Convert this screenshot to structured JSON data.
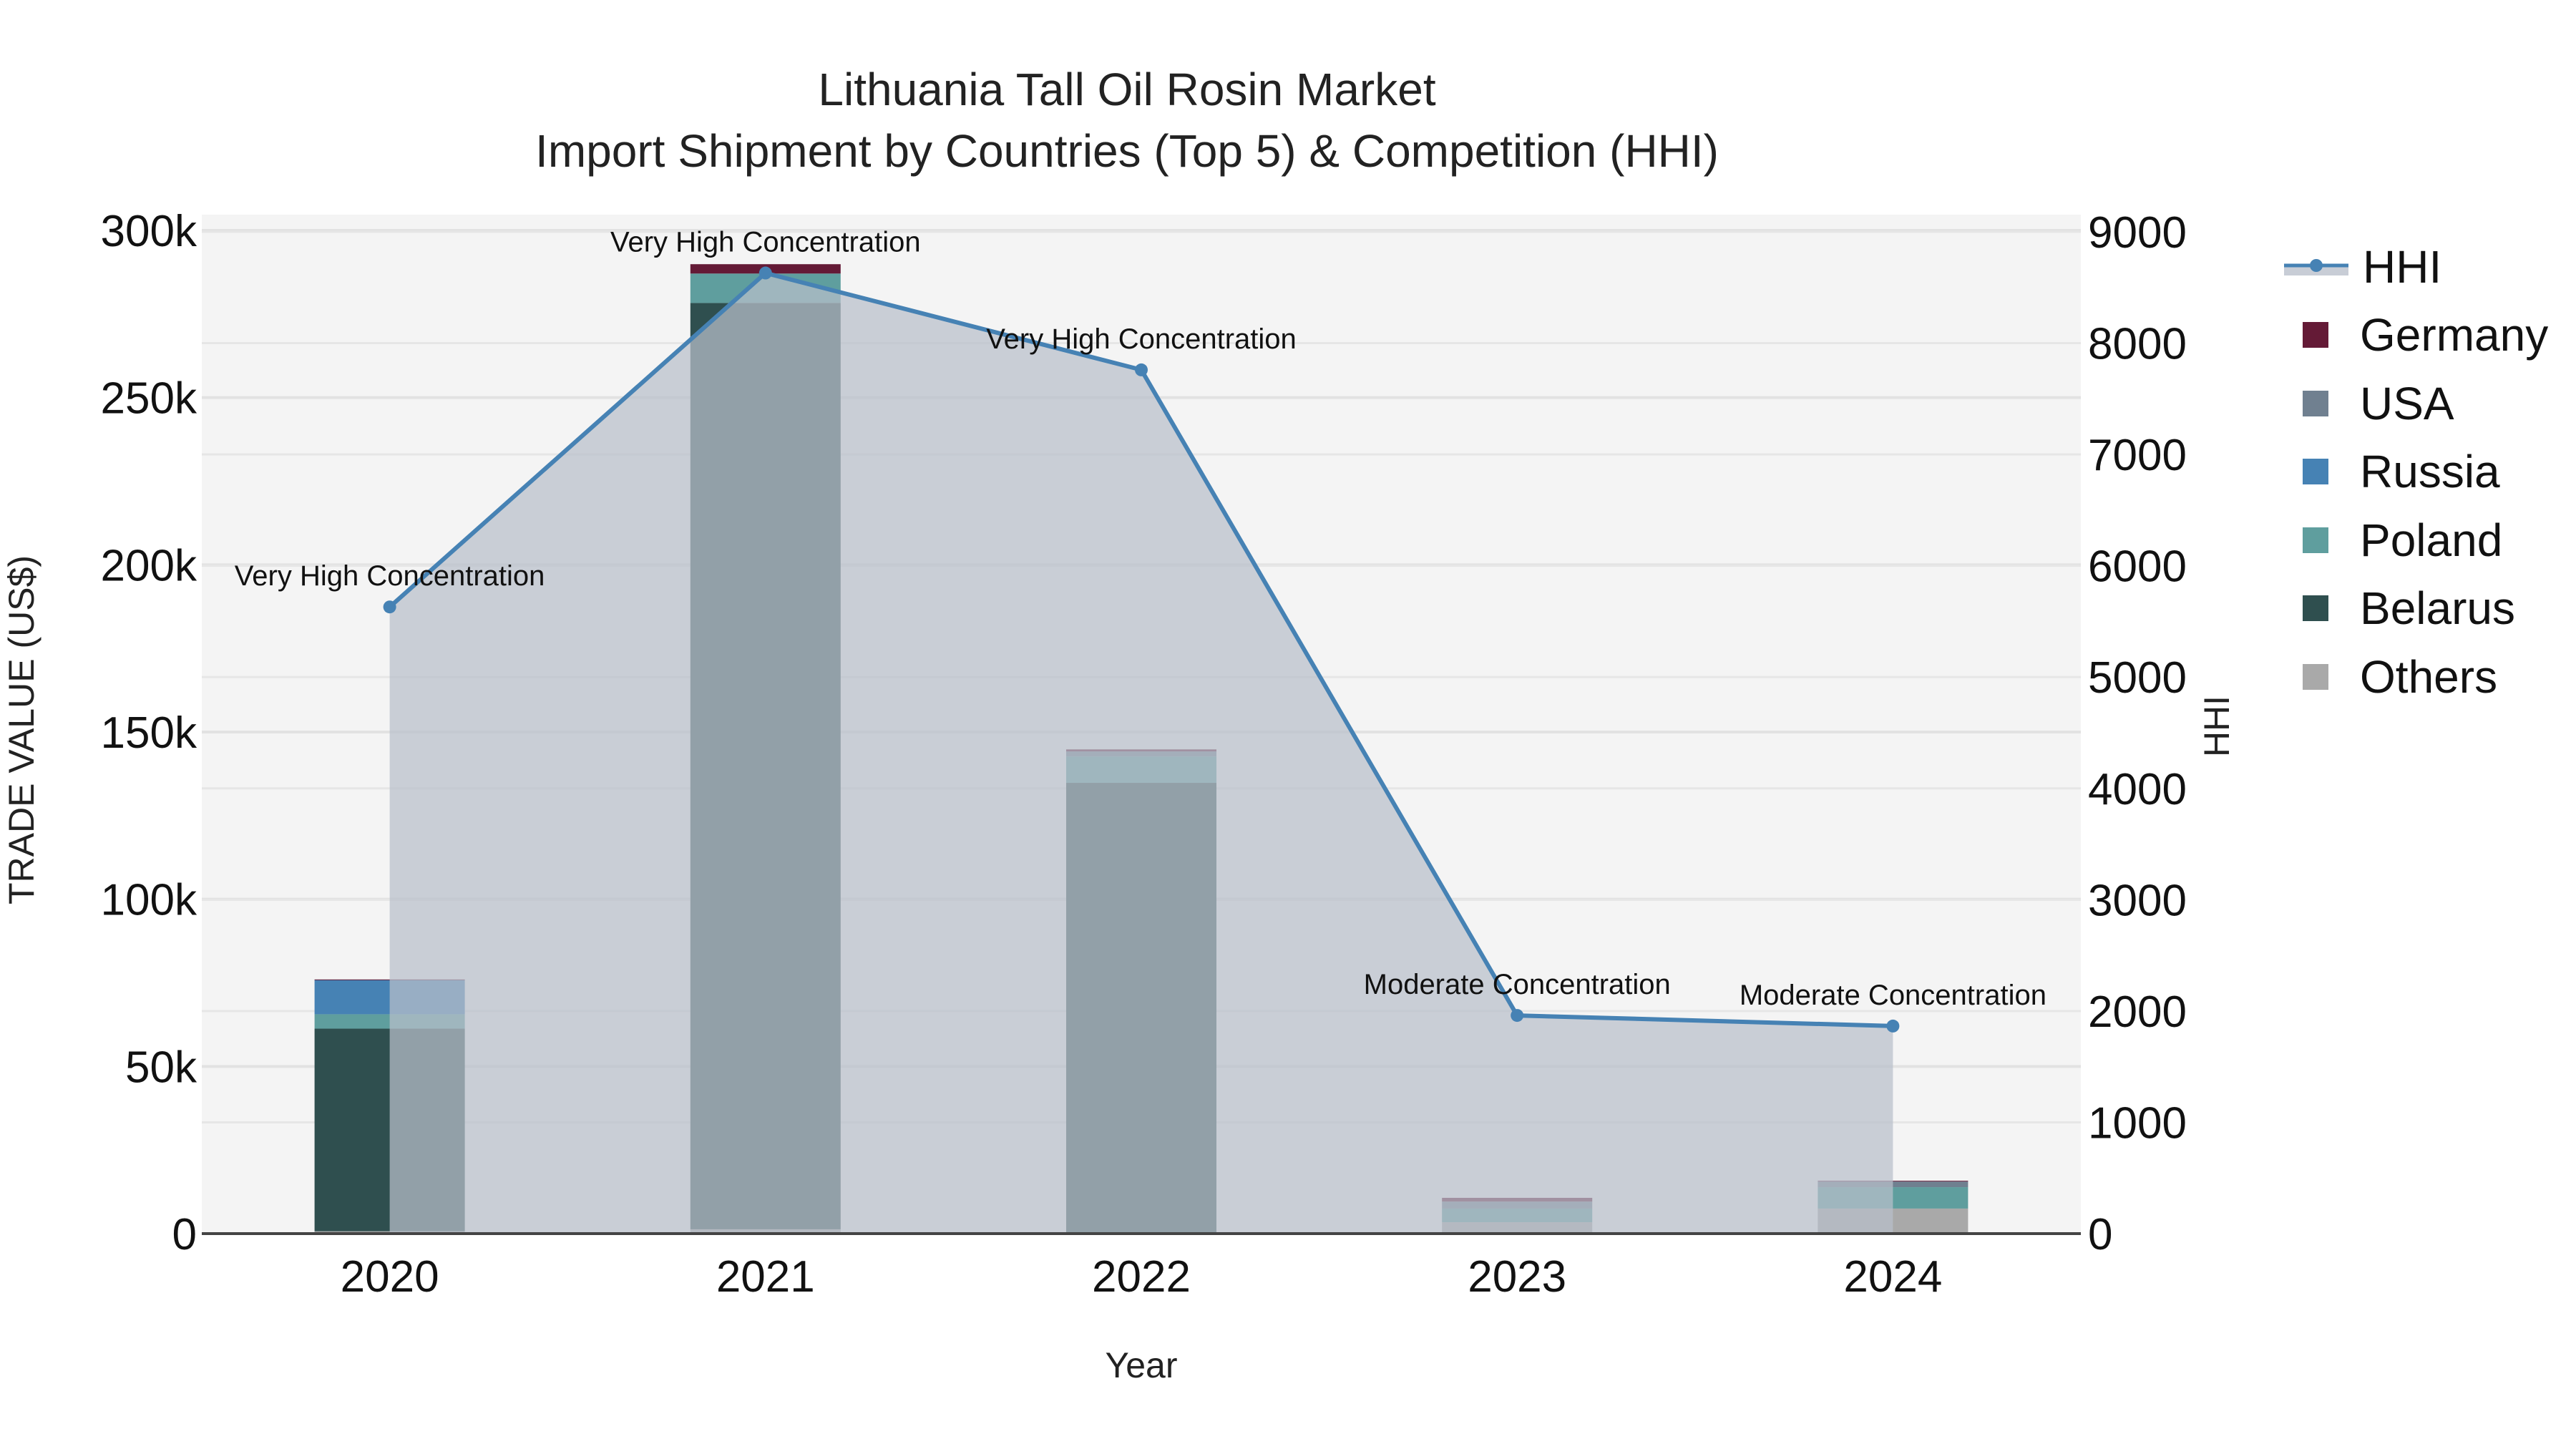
{
  "title": {
    "line1": "Lithuania Tall Oil Rosin Market",
    "line2": "Import Shipment by Countries (Top 5) & Competition (HHI)"
  },
  "axes": {
    "x_title": "Year",
    "y_left_title": "TRADE VALUE (US$)",
    "y_right_title": "HHI",
    "y_left_ticks": [
      "0",
      "50k",
      "100k",
      "150k",
      "200k",
      "250k",
      "300k"
    ],
    "y_right_ticks": [
      "0",
      "1000",
      "2000",
      "3000",
      "4000",
      "5000",
      "6000",
      "7000",
      "8000",
      "9000"
    ]
  },
  "legend": [
    {
      "label": "HHI",
      "type": "line",
      "color": "#4682b4"
    },
    {
      "label": "Germany",
      "type": "box",
      "color": "#641a36"
    },
    {
      "label": "USA",
      "type": "box",
      "color": "#708090"
    },
    {
      "label": "Russia",
      "type": "box",
      "color": "#4682b4"
    },
    {
      "label": "Poland",
      "type": "box",
      "color": "#5f9e9e"
    },
    {
      "label": "Belarus",
      "type": "box",
      "color": "#2f4f4f"
    },
    {
      "label": "Others",
      "type": "box",
      "color": "#a9a9a9"
    }
  ],
  "chart_data": {
    "type": "bar",
    "stacked": true,
    "title": "Lithuania Tall Oil Rosin Market — Import Shipment by Countries (Top 5) & Competition (HHI)",
    "xlabel": "Year",
    "ylabel": "TRADE VALUE (US$)",
    "y2label": "HHI",
    "ylim": [
      0,
      300000
    ],
    "y2lim": [
      0,
      9000
    ],
    "grid": true,
    "legend_position": "right",
    "categories": [
      "2020",
      "2021",
      "2022",
      "2023",
      "2024"
    ],
    "series": [
      {
        "name": "Others",
        "color": "#a9a9a9",
        "values": [
          700,
          1300,
          200,
          3400,
          7500
        ]
      },
      {
        "name": "Belarus",
        "color": "#2f4f4f",
        "values": [
          60600,
          277000,
          134600,
          0,
          0
        ]
      },
      {
        "name": "Poland",
        "color": "#5f9e9e",
        "values": [
          4300,
          8800,
          7900,
          4100,
          6400
        ]
      },
      {
        "name": "Russia",
        "color": "#4682b4",
        "values": [
          10300,
          0,
          0,
          0,
          0
        ]
      },
      {
        "name": "USA",
        "color": "#708090",
        "values": [
          0,
          0,
          1500,
          2100,
          1700
        ]
      },
      {
        "name": "Germany",
        "color": "#641a36",
        "values": [
          100,
          2800,
          600,
          1100,
          200
        ]
      }
    ],
    "line_series": {
      "name": "HHI",
      "axis": "right",
      "color": "#4682b4",
      "fill": "#c8cdd6",
      "values": [
        5630,
        8630,
        7760,
        1960,
        1865
      ],
      "annotations": [
        "Very High Concentration",
        "Very High Concentration",
        "Very High Concentration",
        "Moderate Concentration",
        "Moderate Concentration"
      ]
    }
  }
}
